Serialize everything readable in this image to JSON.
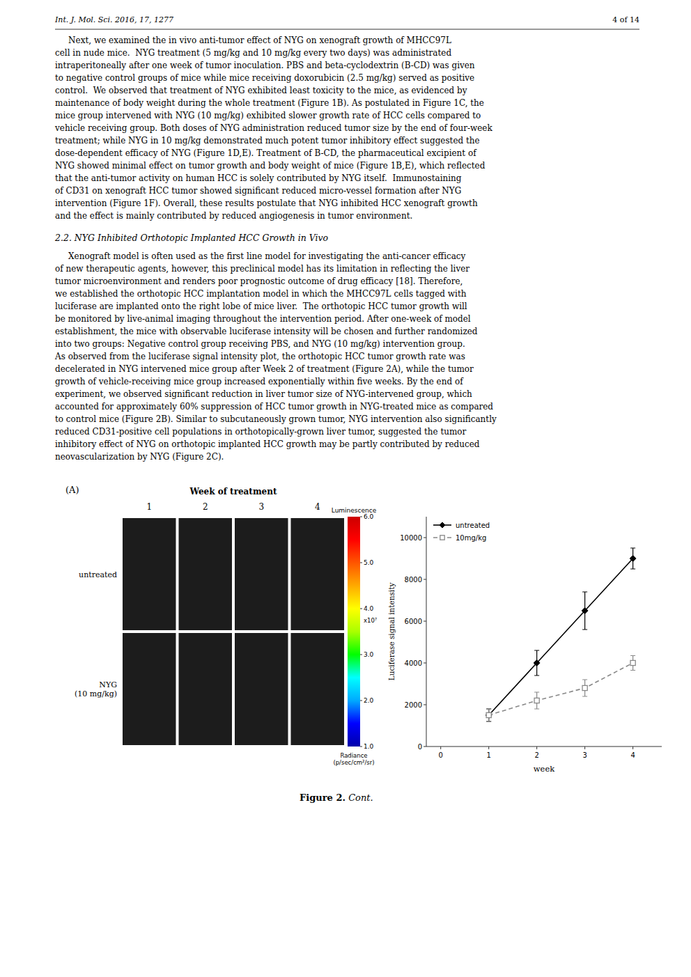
{
  "page": {
    "header_left": "Int. J. Mol. Sci. 2016, 17, 1277",
    "header_right": "4 of 14",
    "paragraph1_lines": [
      "     Next, we examined the in vivo anti-tumor effect of NYG on xenograft growth of MHCC97L",
      "cell in nude mice.  NYG treatment (5 mg/kg and 10 mg/kg every two days) was administrated",
      "intraperitoneally after one week of tumor inoculation. PBS and beta-cyclodextrin (B-CD) was given",
      "to negative control groups of mice while mice receiving doxorubicin (2.5 mg/kg) served as positive",
      "control.  We observed that treatment of NYG exhibited least toxicity to the mice, as evidenced by",
      "maintenance of body weight during the whole treatment (Figure 1B). As postulated in Figure 1C, the",
      "mice group intervened with NYG (10 mg/kg) exhibited slower growth rate of HCC cells compared to",
      "vehicle receiving group. Both doses of NYG administration reduced tumor size by the end of four-week",
      "treatment; while NYG in 10 mg/kg demonstrated much potent tumor inhibitory effect suggested the",
      "dose-dependent efficacy of NYG (Figure 1D,E). Treatment of B-CD, the pharmaceutical excipient of",
      "NYG showed minimal effect on tumor growth and body weight of mice (Figure 1B,E), which reflected",
      "that the anti-tumor activity on human HCC is solely contributed by NYG itself.  Immunostaining",
      "of CD31 on xenograft HCC tumor showed significant reduced micro-vessel formation after NYG",
      "intervention (Figure 1F). Overall, these results postulate that NYG inhibited HCC xenograft growth",
      "and the effect is mainly contributed by reduced angiogenesis in tumor environment."
    ],
    "section_heading": "2.2. NYG Inhibited Orthotopic Implanted HCC Growth in Vivo",
    "paragraph2_lines": [
      "     Xenograft model is often used as the first line model for investigating the anti-cancer efficacy",
      "of new therapeutic agents, however, this preclinical model has its limitation in reflecting the liver",
      "tumor microenvironment and renders poor prognostic outcome of drug efficacy [18]. Therefore,",
      "we established the orthotopic HCC implantation model in which the MHCC97L cells tagged with",
      "luciferase are implanted onto the right lobe of mice liver.  The orthotopic HCC tumor growth will",
      "be monitored by live-animal imaging throughout the intervention period. After one-week of model",
      "establishment, the mice with observable luciferase intensity will be chosen and further randomized",
      "into two groups: Negative control group receiving PBS, and NYG (10 mg/kg) intervention group.",
      "As observed from the luciferase signal intensity plot, the orthotopic HCC tumor growth rate was",
      "decelerated in NYG intervened mice group after Week 2 of treatment (Figure 2A), while the tumor",
      "growth of vehicle-receiving mice group increased exponentially within five weeks. By the end of",
      "experiment, we observed significant reduction in liver tumor size of NYG-intervened group, which",
      "accounted for approximately 60% suppression of HCC tumor growth in NYG-treated mice as compared",
      "to control mice (Figure 2B). Similar to subcutaneously grown tumor, NYG intervention also significantly",
      "reduced CD31-positive cell populations in orthotopically-grown liver tumor, suggested the tumor",
      "inhibitory effect of NYG on orthotopic implanted HCC growth may be partly contributed by reduced",
      "neovascularization by NYG (Figure 2C)."
    ],
    "figure_label": "(A)",
    "caption_bold": "Figure 2.",
    "caption_italic": " Cont."
  },
  "chart_data": [
    {
      "type": "line",
      "x": [
        1,
        2,
        3,
        4
      ],
      "series": [
        {
          "name": "untreated",
          "color": "#000000",
          "marker": "diamond",
          "line_style": "solid",
          "values": [
            1500,
            4000,
            6500,
            9000
          ],
          "errors": [
            300,
            600,
            900,
            500
          ]
        },
        {
          "name": "10mg/kg",
          "color": "#888888",
          "marker": "square",
          "line_style": "dashed",
          "values": [
            1500,
            2200,
            2800,
            4000
          ],
          "errors": [
            300,
            400,
            400,
            350
          ]
        }
      ],
      "xlabel": "week",
      "ylabel": "Luciferase signal intensity",
      "xlim": [
        -0.3,
        4.6
      ],
      "ylim": [
        0,
        11000
      ],
      "xticks": [
        0,
        1,
        2,
        3,
        4
      ],
      "yticks": [
        0,
        2000,
        4000,
        6000,
        8000,
        10000
      ],
      "legend": "upper left",
      "grid": false
    },
    {
      "type": "image_grid",
      "title": "Week of treatment",
      "columns": [
        "1",
        "2",
        "3",
        "4"
      ],
      "rows": [
        "untreated",
        "NYG\n(10 mg/kg)"
      ],
      "color": "#1c1c1c",
      "colorbar": {
        "label": "Luminescence",
        "scale_label": "x10⁷",
        "unit_label": "Radiance\n(p/sec/cm²/sr)",
        "range": [
          1,
          6
        ],
        "ticks": [
          {
            "value": 6,
            "label": "6.0"
          },
          {
            "value": 5,
            "label": "5.0"
          },
          {
            "value": 4,
            "label": "4.0"
          },
          {
            "value": 3,
            "label": "3.0"
          },
          {
            "value": 2,
            "label": "2.0"
          },
          {
            "value": 1,
            "label": "1.0"
          }
        ],
        "colors": [
          "#0000aa",
          "#0000ff",
          "#00aaff",
          "#00ffff",
          "#00ff00",
          "#aaff00",
          "#ffff00",
          "#ffaa00",
          "#ff5500",
          "#ff0000",
          "#cc0000"
        ]
      }
    }
  ]
}
